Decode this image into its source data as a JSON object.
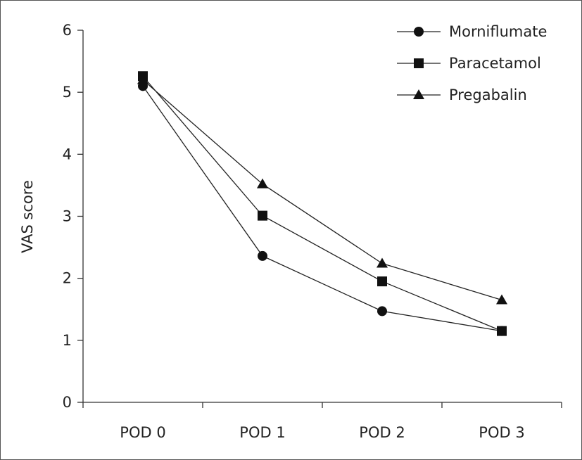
{
  "chart_data": {
    "type": "line",
    "title": "",
    "xlabel": "",
    "ylabel": "VAS score",
    "categories": [
      "POD 0",
      "POD 1",
      "POD 2",
      "POD 3"
    ],
    "ylim": [
      0,
      6
    ],
    "yticks": [
      0,
      1,
      2,
      3,
      4,
      5,
      6
    ],
    "grid": false,
    "legend_position": "top-right",
    "series": [
      {
        "name": "Morniflumate",
        "marker": "circle",
        "values": [
          5.1,
          2.36,
          1.47,
          1.15
        ]
      },
      {
        "name": "Paracetamol",
        "marker": "square",
        "values": [
          5.26,
          3.01,
          1.95,
          1.15
        ]
      },
      {
        "name": "Pregabalin",
        "marker": "triangle",
        "values": [
          5.2,
          3.52,
          2.24,
          1.65
        ]
      }
    ]
  }
}
